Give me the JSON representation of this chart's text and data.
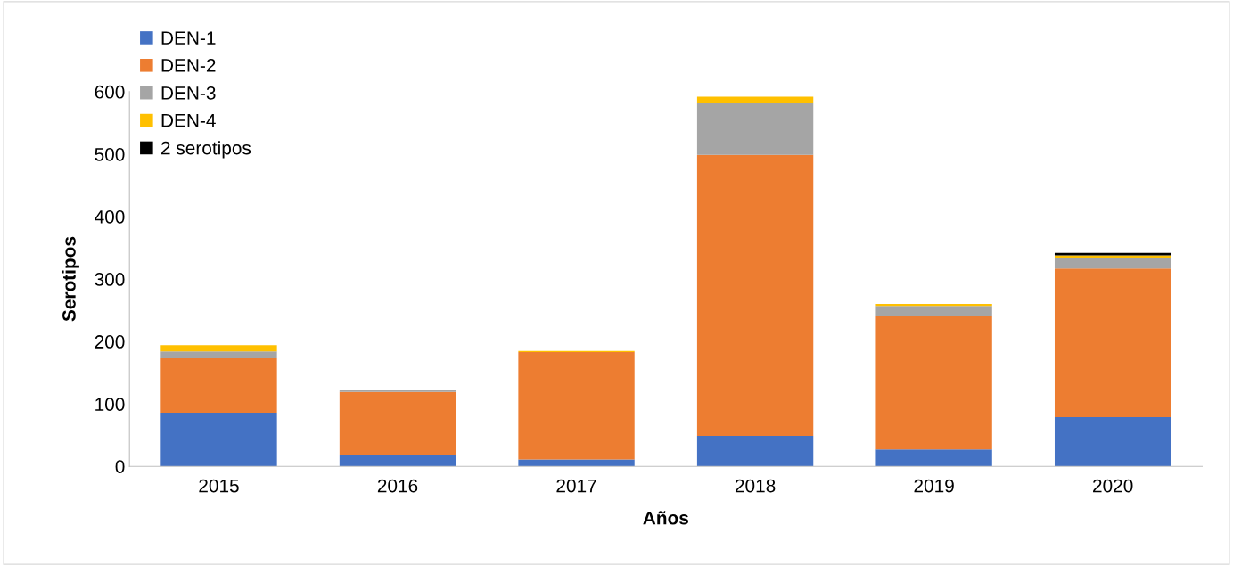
{
  "chart_data": {
    "type": "bar",
    "stacked": true,
    "xlabel": "Años",
    "ylabel": "Serotipos",
    "categories": [
      "2015",
      "2016",
      "2017",
      "2018",
      "2019",
      "2020"
    ],
    "series": [
      {
        "name": "DEN-1",
        "color": "#4472c4",
        "values": [
          86,
          19,
          11,
          49,
          27,
          79
        ]
      },
      {
        "name": "DEN-2",
        "color": "#ed7d31",
        "values": [
          87,
          100,
          172,
          450,
          213,
          238
        ]
      },
      {
        "name": "DEN-3",
        "color": "#a5a5a5",
        "values": [
          11,
          4,
          null,
          83,
          17,
          17
        ]
      },
      {
        "name": "DEN-4",
        "color": "#ffc000",
        "values": [
          10,
          0,
          2,
          10,
          3,
          4
        ]
      },
      {
        "name": "2 serotipos",
        "color": "#000000",
        "values": [
          0,
          0,
          0,
          0,
          0,
          4
        ]
      }
    ],
    "ylim": [
      0,
      600
    ],
    "yticks": [
      0,
      100,
      200,
      300,
      400,
      500,
      600
    ],
    "grid": false,
    "legend": "top left"
  }
}
